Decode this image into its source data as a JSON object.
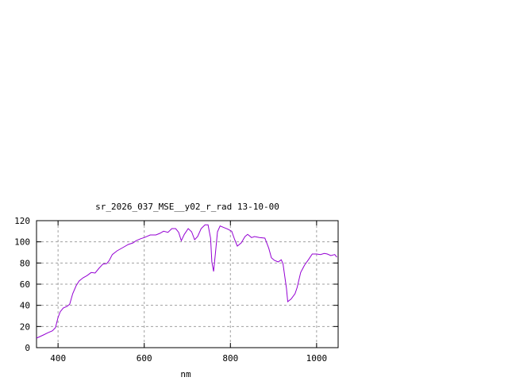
{
  "chart_data": {
    "type": "line",
    "title": "sr_2026_037_MSE__y02_r_rad 13-10-00",
    "xlabel": "nm",
    "ylabel": "",
    "xlim": [
      350,
      1050
    ],
    "ylim": [
      0,
      120
    ],
    "xticks": [
      400,
      600,
      800,
      1000
    ],
    "yticks": [
      0,
      20,
      40,
      60,
      80,
      100,
      120
    ],
    "grid": true,
    "line_color": "#9400d3",
    "series": [
      {
        "x": [
          350,
          366,
          376,
          387,
          394,
          400,
          405,
          412,
          421,
          427,
          434,
          442,
          449,
          458,
          467,
          477,
          486,
          495,
          504,
          513,
          519,
          526,
          537,
          550,
          563,
          574,
          581,
          592,
          600,
          614,
          627,
          636,
          645,
          655,
          664,
          673,
          680,
          686,
          693,
          702,
          710,
          717,
          724,
          732,
          741,
          748,
          754,
          757,
          761,
          765,
          770,
          776,
          785,
          794,
          803,
          810,
          816,
          825,
          834,
          840,
          849,
          856,
          867,
          880,
          889,
          895,
          902,
          911,
          918,
          922,
          930,
          933,
          941,
          950,
          955,
          963,
          972,
          981,
          990,
          1000,
          1009,
          1018,
          1025,
          1033,
          1042,
          1047
        ],
        "y": [
          9,
          12,
          14,
          16,
          19,
          28.5,
          34,
          37.5,
          39,
          41,
          51,
          58.5,
          63,
          66,
          68,
          71,
          70.5,
          75,
          79,
          79.5,
          82.5,
          88,
          91.5,
          94.5,
          97.5,
          99,
          101,
          103,
          104,
          106.5,
          106.5,
          108,
          110,
          109,
          112.5,
          112.5,
          109,
          101,
          107,
          112.5,
          109.5,
          102,
          105,
          112.5,
          116,
          116,
          103.5,
          81,
          72,
          88.5,
          109.5,
          115,
          113.5,
          112,
          110,
          102,
          96,
          99,
          105,
          107,
          104,
          105,
          104,
          103.5,
          94,
          85,
          82.5,
          81,
          83,
          79.5,
          56,
          43.5,
          46,
          51,
          57,
          71,
          78,
          83,
          88.5,
          88.5,
          88,
          89,
          88.5,
          87,
          88,
          85.5
        ]
      }
    ]
  }
}
